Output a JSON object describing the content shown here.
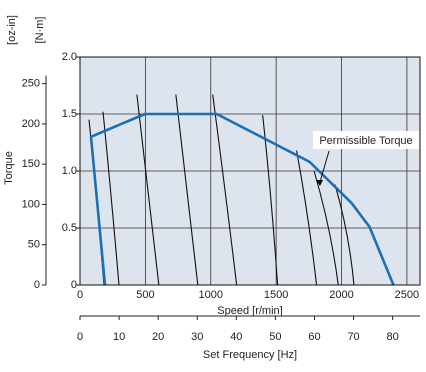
{
  "chart_data": {
    "type": "line",
    "y_label": "Torque",
    "y_unit": "[N·m]",
    "y2_unit": "[oz-in]",
    "x_label": "Speed [r/min]",
    "x2_label": "Set Frequency [Hz]",
    "annotation": "Permissible Torque",
    "xlim": [
      0,
      2600
    ],
    "xticks": [
      0,
      500,
      1000,
      1500,
      2000,
      2500
    ],
    "ylim": [
      0,
      2.0
    ],
    "yticks": [
      0,
      0.5,
      {
        "value": 1.0,
        "label": "1.0"
      },
      1.5,
      {
        "value": 2.0,
        "label": "2.0"
      }
    ],
    "y2lim": [
      0,
      283
    ],
    "y2ticks": [
      0,
      50,
      100,
      150,
      200,
      250
    ],
    "x2lim": [
      0,
      87
    ],
    "x2ticks": [
      0,
      10,
      20,
      30,
      40,
      50,
      60,
      70,
      80
    ],
    "grid": true,
    "background": "#dde4ee",
    "series": [
      {
        "color": "#1b6fb6",
        "x": [
          191,
          84,
          496,
          1046,
          1756,
          2076,
          2214,
          2397
        ],
        "values": [
          0,
          1.3,
          1.5,
          1.5,
          1.08,
          0.72,
          0.51,
          0
        ]
      },
      {
        "color": "#111111",
        "x": [
          69,
          130,
          183
        ],
        "values": [
          1.45,
          0.72,
          0
        ]
      },
      {
        "color": "#111111",
        "x": [
          176,
          240,
          298
        ],
        "values": [
          1.52,
          0.75,
          0
        ]
      },
      {
        "color": "#111111",
        "x": [
          435,
          520,
          603
        ],
        "values": [
          1.67,
          0.82,
          0
        ]
      },
      {
        "color": "#111111",
        "x": [
          733,
          820,
          901
        ],
        "values": [
          1.67,
          0.82,
          0
        ]
      },
      {
        "color": "#111111",
        "x": [
          1015,
          1110,
          1198
        ],
        "values": [
          1.67,
          0.82,
          0
        ]
      },
      {
        "color": "#111111",
        "x": [
          1397,
          1460,
          1511
        ],
        "values": [
          1.49,
          0.75,
          0
        ]
      },
      {
        "color": "#111111",
        "x": [
          1656,
          1740,
          1809
        ],
        "values": [
          1.18,
          0.6,
          0
        ]
      },
      {
        "color": "#111111",
        "x": [
          1790,
          1900,
          1975
        ],
        "values": [
          1.0,
          0.5,
          0
        ]
      },
      {
        "color": "#111111",
        "x": [
          1950,
          2040,
          2095
        ],
        "values": [
          0.88,
          0.45,
          0
        ]
      }
    ]
  }
}
